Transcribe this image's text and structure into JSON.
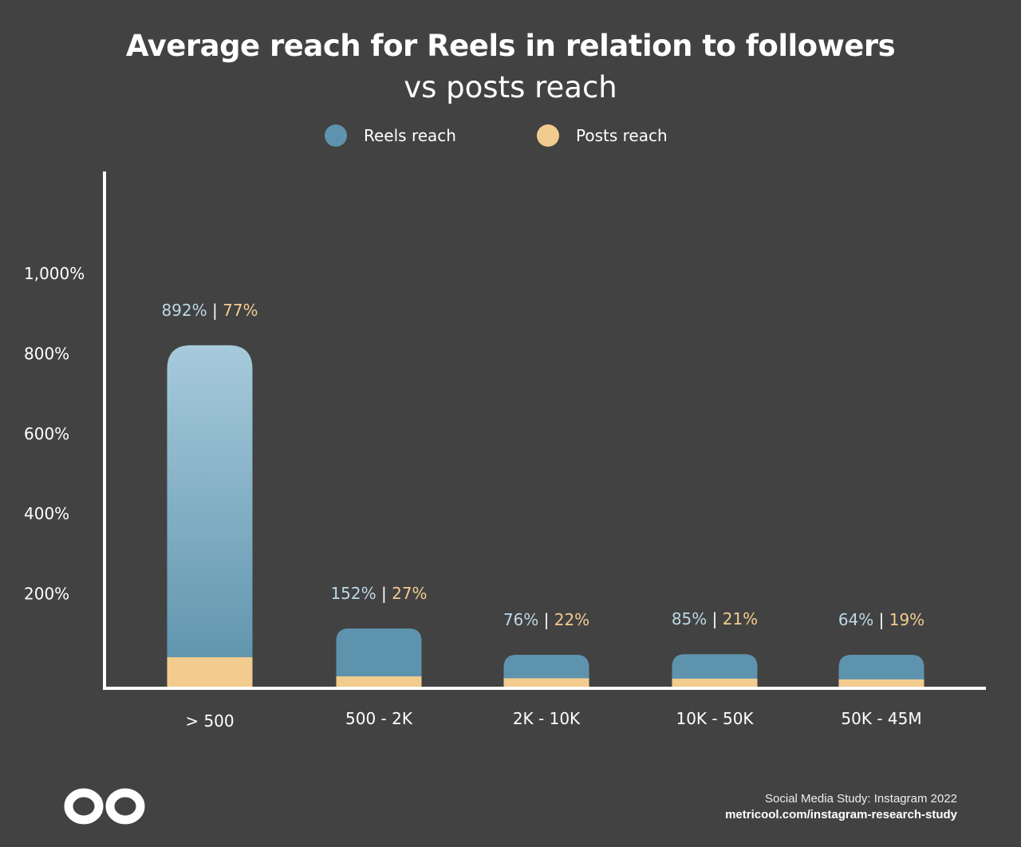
{
  "chart_data": {
    "type": "bar",
    "title": "Average reach for Reels in relation to followers",
    "subtitle": "vs posts reach",
    "categories": [
      "> 500",
      "500 - 2K",
      "2K - 10K",
      "10K - 50K",
      "50K - 45M"
    ],
    "series": [
      {
        "name": "Reels reach",
        "values": [
          892,
          152,
          76,
          85,
          64
        ],
        "color": "#5e93ae"
      },
      {
        "name": "Posts reach",
        "values": [
          77,
          27,
          22,
          21,
          19
        ],
        "color": "#f2cc8f"
      }
    ],
    "y_ticks": [
      "200%",
      "400%",
      "600%",
      "800%",
      "1,000%"
    ],
    "y_tick_values": [
      200,
      400,
      600,
      800,
      1000
    ],
    "ylim": [
      0,
      1000
    ],
    "grid": false,
    "legend": "top"
  },
  "footer": {
    "source": "Social Media Study: Instagram 2022",
    "url": "metricool.com/instagram-research-study"
  },
  "logo": "metricool-logo",
  "colors": {
    "background": "#424242",
    "reels_label": "#bcd8e6",
    "posts_label": "#f2cc8f"
  }
}
